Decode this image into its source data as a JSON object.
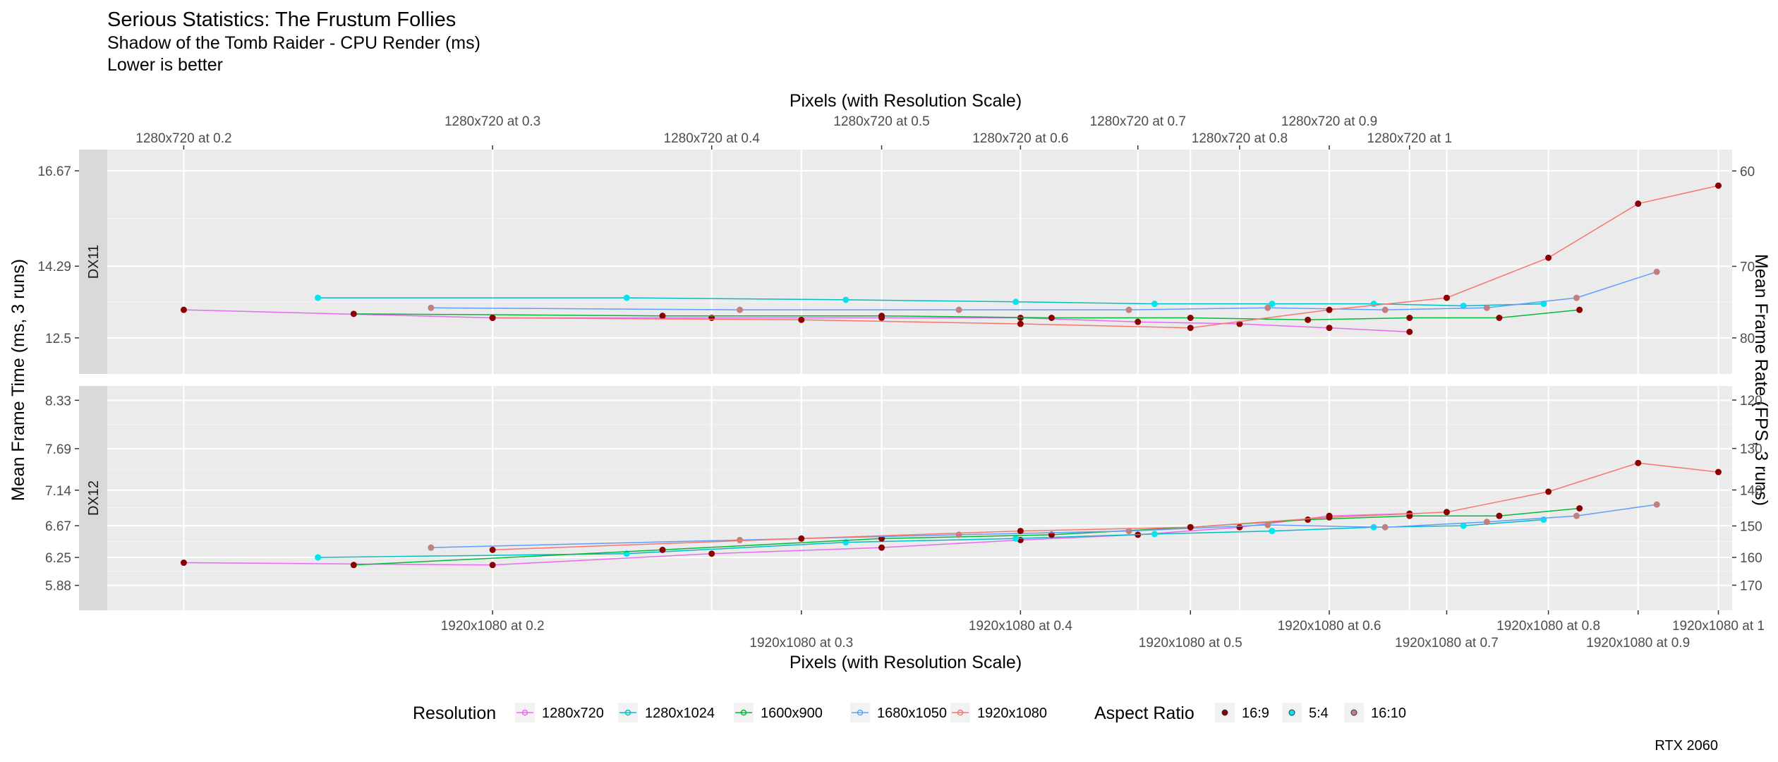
{
  "header": {
    "title": "Serious Statistics: The Frustum Follies",
    "subtitle": "Shadow of the Tomb Raider - CPU Render (ms)",
    "note": "Lower is better"
  },
  "caption": "RTX 2060",
  "colors": {
    "1280x720": "#e76bf3",
    "1280x1024": "#00bfc4",
    "1600x900": "#00ba38",
    "1680x1050": "#619cff",
    "1920x1080": "#f8766d",
    "16:9": "#8b0000",
    "5:4": "#00e5ee",
    "16:10": "#c08080",
    "panel_bg": "#ebebeb",
    "strip_bg": "#d9d9d9"
  },
  "chart_data": {
    "type": "line",
    "x_axis_title_top": "Pixels (with Resolution Scale)",
    "x_axis_title_bottom": "Pixels (with Resolution Scale)",
    "y_axis_title_left": "Mean Frame Time (ms, 3 runs)",
    "y_axis_title_right": "Mean Frame Rate (FPS, 3 runs)",
    "x_scale": "log",
    "x_unit": "pixels",
    "xlim": [
      28000,
      2150000
    ],
    "top_ticks": [
      {
        "label": "1280x720 at 0.2",
        "x": 36864
      },
      {
        "label": "1280x720 at 0.3",
        "x": 82944
      },
      {
        "label": "1280x720 at 0.4",
        "x": 147456
      },
      {
        "label": "1280x720 at 0.5",
        "x": 230400
      },
      {
        "label": "1280x720 at 0.6",
        "x": 331776
      },
      {
        "label": "1280x720 at 0.7",
        "x": 451584
      },
      {
        "label": "1280x720 at 0.8",
        "x": 589824
      },
      {
        "label": "1280x720 at 0.9",
        "x": 746496
      },
      {
        "label": "1280x720 at 1",
        "x": 921600
      }
    ],
    "bottom_ticks": [
      {
        "label": "1920x1080 at 0.2",
        "x": 82944
      },
      {
        "label": "1920x1080 at 0.3",
        "x": 186624
      },
      {
        "label": "1920x1080 at 0.4",
        "x": 331776
      },
      {
        "label": "1920x1080 at 0.5",
        "x": 518400
      },
      {
        "label": "1920x1080 at 0.6",
        "x": 746496
      },
      {
        "label": "1920x1080 at 0.7",
        "x": 1016064
      },
      {
        "label": "1920x1080 at 0.8",
        "x": 1327104
      },
      {
        "label": "1920x1080 at 0.9",
        "x": 1679616
      },
      {
        "label": "1920x1080 at 1",
        "x": 2073600
      }
    ],
    "legend": {
      "resolution_title": "Resolution",
      "resolution_items": [
        "1280x720",
        "1280x1024",
        "1600x900",
        "1680x1050",
        "1920x1080"
      ],
      "aspect_title": "Aspect Ratio",
      "aspect_items": [
        "16:9",
        "5:4",
        "16:10"
      ],
      "position": "bottom"
    },
    "panels": [
      {
        "label": "DX11",
        "y_ticks": [
          "16.67",
          "14.29",
          "12.5"
        ],
        "y_tick_values": [
          16.67,
          14.29,
          12.5
        ],
        "fps_ticks": [
          60,
          70,
          80
        ],
        "ylim": [
          11.6,
          17.2
        ],
        "series": [
          {
            "name": "1280x720",
            "aspect": "16:9",
            "x": [
              36864,
              82944,
              147456,
              230400,
              331776,
              451584,
              589824,
              746496,
              921600
            ],
            "y": [
              13.2,
              13.0,
              13.0,
              13.0,
              13.0,
              12.9,
              12.85,
              12.75,
              12.65
            ]
          },
          {
            "name": "1280x1024",
            "aspect": "5:4",
            "x": [
              52429,
              117965,
              209715,
              327680,
              471859,
              642253,
              838861,
              1061683,
              1310720
            ],
            "y": [
              13.5,
              13.5,
              13.45,
              13.4,
              13.35,
              13.35,
              13.35,
              13.3,
              13.35
            ]
          },
          {
            "name": "1600x900",
            "aspect": "16:9",
            "x": [
              57600,
              129600,
              230400,
              360000,
              518400,
              705600,
              921600,
              1166400,
              1440000
            ],
            "y": [
              13.1,
              13.05,
              13.05,
              13.0,
              13.0,
              12.95,
              13.0,
              13.0,
              13.2
            ]
          },
          {
            "name": "1680x1050",
            "aspect": "16:10",
            "x": [
              70560,
              158760,
              282240,
              441000,
              635040,
              864360,
              1128960,
              1428840,
              1764000
            ],
            "y": [
              13.25,
              13.2,
              13.2,
              13.2,
              13.25,
              13.2,
              13.25,
              13.5,
              14.15
            ]
          },
          {
            "name": "1920x1080",
            "aspect": "16:9",
            "x": [
              82944,
              186624,
              331776,
              518400,
              746496,
              1016064,
              1327104,
              1679616,
              2073600
            ],
            "y": [
              13.0,
              12.95,
              12.85,
              12.75,
              13.2,
              13.5,
              14.5,
              15.85,
              16.3
            ]
          }
        ]
      },
      {
        "label": "DX12",
        "y_ticks": [
          "8.33",
          "7.69",
          "7.14",
          "6.67",
          "6.25",
          "5.88"
        ],
        "y_tick_values": [
          8.33,
          7.69,
          7.14,
          6.67,
          6.25,
          5.88
        ],
        "fps_ticks": [
          120,
          130,
          140,
          150,
          160,
          170
        ],
        "ylim": [
          5.55,
          8.52
        ],
        "series": [
          {
            "name": "1280x720",
            "aspect": "16:9",
            "x": [
              36864,
              82944,
              147456,
              230400,
              331776,
              451584,
              589824,
              746496,
              921600
            ],
            "y": [
              6.18,
              6.15,
              6.3,
              6.38,
              6.48,
              6.55,
              6.65,
              6.8,
              6.83
            ]
          },
          {
            "name": "1280x1024",
            "aspect": "5:4",
            "x": [
              52429,
              117965,
              209715,
              327680,
              471859,
              642253,
              838861,
              1061683,
              1310720
            ],
            "y": [
              6.25,
              6.3,
              6.45,
              6.5,
              6.56,
              6.6,
              6.65,
              6.67,
              6.75
            ]
          },
          {
            "name": "1600x900",
            "aspect": "16:9",
            "x": [
              57600,
              129600,
              230400,
              360000,
              518400,
              705600,
              921600,
              1166400,
              1440000
            ],
            "y": [
              6.15,
              6.35,
              6.5,
              6.55,
              6.65,
              6.75,
              6.8,
              6.8,
              6.9
            ]
          },
          {
            "name": "1680x1050",
            "aspect": "16:10",
            "x": [
              70560,
              158760,
              282240,
              441000,
              635040,
              864360,
              1128960,
              1428840,
              1764000
            ],
            "y": [
              6.38,
              6.48,
              6.55,
              6.6,
              6.68,
              6.65,
              6.72,
              6.8,
              6.95
            ]
          },
          {
            "name": "1920x1080",
            "aspect": "16:9",
            "x": [
              82944,
              186624,
              331776,
              518400,
              746496,
              1016064,
              1327104,
              1679616,
              2073600
            ],
            "y": [
              6.35,
              6.5,
              6.6,
              6.65,
              6.78,
              6.85,
              7.12,
              7.5,
              7.38
            ]
          }
        ]
      }
    ]
  }
}
